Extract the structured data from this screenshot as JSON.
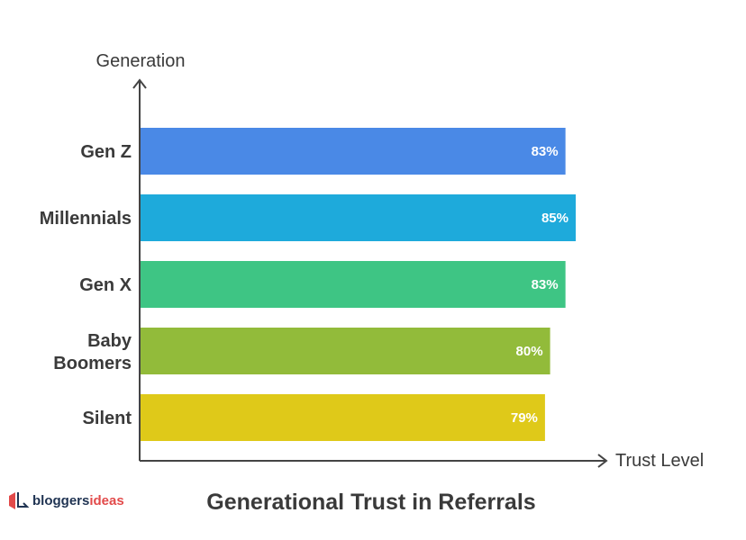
{
  "chart_data": {
    "type": "bar",
    "orientation": "horizontal",
    "title": "Generational Trust in Referrals",
    "xlabel": "Trust Level",
    "ylabel": "Generation",
    "categories": [
      "Gen Z",
      "Millennials",
      "Gen X",
      "Baby Boomers",
      "Silent"
    ],
    "values": [
      83,
      85,
      83,
      80,
      79
    ],
    "value_labels": [
      "83%",
      "85%",
      "83%",
      "80%",
      "79%"
    ],
    "colors": [
      "#4a89e6",
      "#1eaadb",
      "#3ec584",
      "#92bb3a",
      "#dfc919"
    ],
    "grid": false,
    "legend": "none"
  },
  "logo": {
    "text_main": "bloggers",
    "text_accent": "ideas",
    "color_main": "#1f3352",
    "color_accent": "#e24a4a"
  }
}
